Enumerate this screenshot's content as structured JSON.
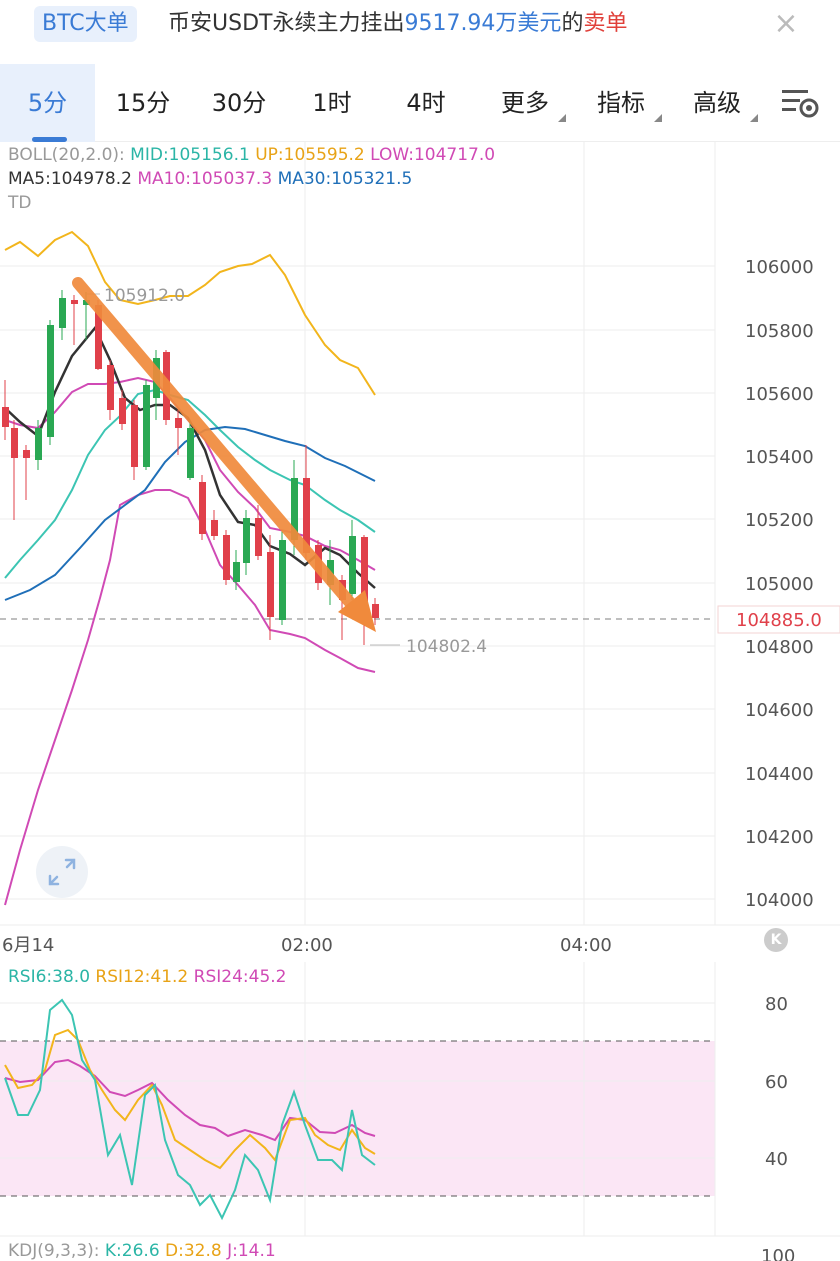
{
  "banner": {
    "badge": "BTC大单",
    "text_prefix": "币安USDT永续主力挂出",
    "amount": "9517.94万美元",
    "text_mid": "的",
    "side": "卖单",
    "close_icon": "×"
  },
  "tabs": [
    {
      "label": "5分",
      "active": true
    },
    {
      "label": "15分"
    },
    {
      "label": "30分"
    },
    {
      "label": "1时"
    },
    {
      "label": "4时"
    },
    {
      "label": "更多"
    },
    {
      "label": "指标"
    },
    {
      "label": "高级"
    }
  ],
  "indicators": {
    "boll_name": "BOLL(20,2.0):",
    "boll_mid": "MID:105156.1",
    "boll_up": "UP:105595.2",
    "boll_low": "LOW:104717.0",
    "ma5": "MA5:104978.2",
    "ma10": "MA10:105037.3",
    "ma30": "MA30:105321.5",
    "td": "TD"
  },
  "price_axis": [
    "106000",
    "105800",
    "105600",
    "105400",
    "105200",
    "105000",
    "104800",
    "104600",
    "104400",
    "104200",
    "104000"
  ],
  "current_price": "104885.0",
  "high_marker": "105912.0",
  "low_marker": "104802.4",
  "time_axis": [
    "6月14",
    "02:00",
    "04:00"
  ],
  "rsi": {
    "rsi6": "RSI6:38.0",
    "rsi12": "RSI12:41.2",
    "rsi24": "RSI24:45.2",
    "axis": [
      "80",
      "60",
      "40"
    ]
  },
  "kdj": {
    "name": "KDJ(9,3,3):",
    "k": "K:26.6",
    "d": "D:32.8",
    "j": "J:14.1",
    "axis_top": "100"
  },
  "colors": {
    "up": "#2aa853",
    "down": "#e0404a",
    "accent": "#3a7bd5",
    "arrow": "#f08a3c"
  }
}
